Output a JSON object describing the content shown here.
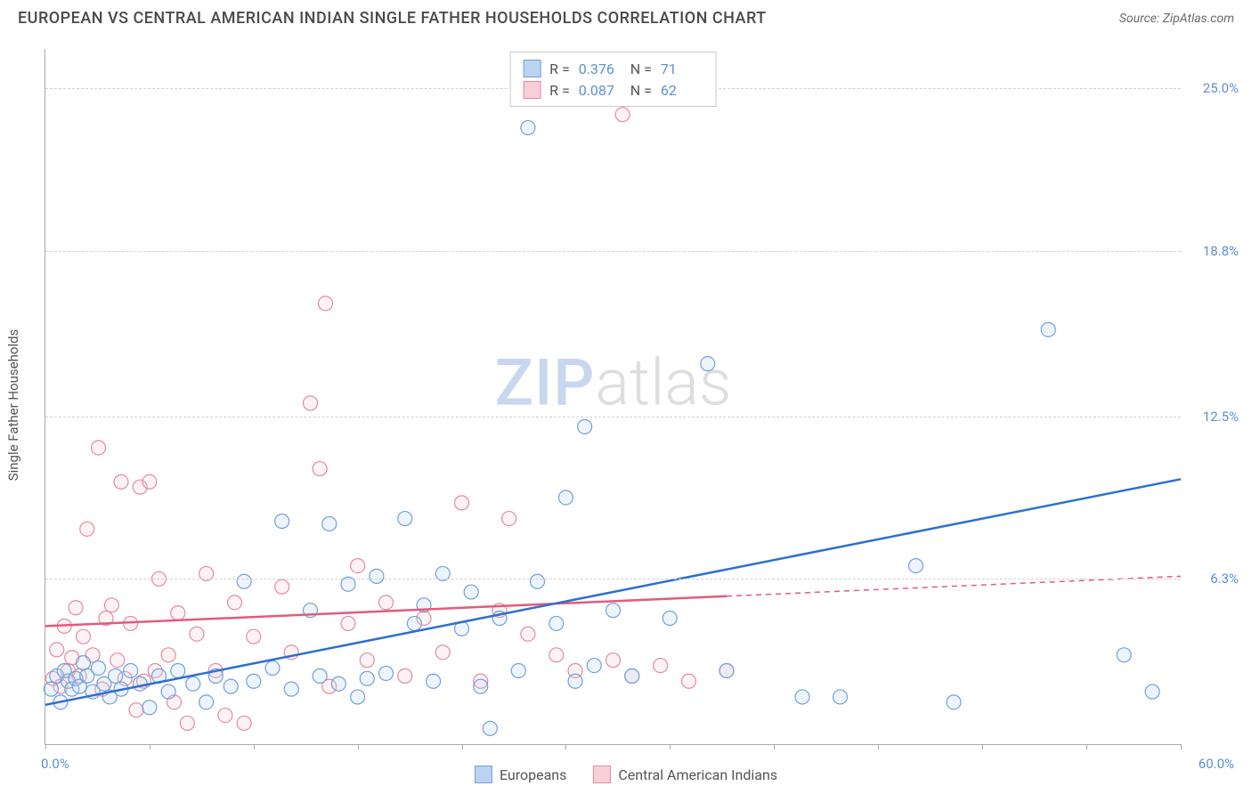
{
  "header": {
    "title": "EUROPEAN VS CENTRAL AMERICAN INDIAN SINGLE FATHER HOUSEHOLDS CORRELATION CHART",
    "source_label": "Source: ",
    "source_value": "ZipAtlas.com"
  },
  "chart": {
    "type": "scatter",
    "ylabel": "Single Father Households",
    "xlim": [
      0,
      60
    ],
    "ylim": [
      0,
      26.5
    ],
    "x_ticks_minor": [
      0,
      5.5,
      11,
      16.5,
      22,
      27.5,
      33,
      38.5,
      44,
      49.5,
      55,
      60
    ],
    "y_gridlines": [
      6.3,
      12.5,
      18.8,
      25.0
    ],
    "y_tick_labels": [
      "6.3%",
      "12.5%",
      "18.8%",
      "25.0%"
    ],
    "x_corner_left": "0.0%",
    "x_corner_right": "60.0%",
    "background_color": "#ffffff",
    "grid_color": "#d0d0d0",
    "axis_color": "#aaaaaa",
    "marker_radius": 8,
    "marker_stroke_width": 1.2,
    "marker_fill_opacity": 0.25,
    "trend_line_width": 2.5,
    "trend_dash_pattern": "6,5",
    "watermark": {
      "zip": "ZIP",
      "atlas": "atlas",
      "zip_color": "#c8d7ef",
      "atlas_color": "#dedede",
      "fontsize": 72
    }
  },
  "legend_top": {
    "rows": [
      {
        "swatch_fill": "#bcd3ef",
        "swatch_stroke": "#6fa0de",
        "r_label": "R  =",
        "r_value": "0.376",
        "n_label": "N  =",
        "n_value": "71"
      },
      {
        "swatch_fill": "#f6cfd7",
        "swatch_stroke": "#e48aa0",
        "r_label": "R  =",
        "r_value": "0.087",
        "n_label": "N  =",
        "n_value": "62"
      }
    ]
  },
  "legend_bottom": {
    "items": [
      {
        "swatch_fill": "#bcd3ef",
        "swatch_stroke": "#6fa0de",
        "label": "Europeans"
      },
      {
        "swatch_fill": "#f6cfd7",
        "swatch_stroke": "#e48aa0",
        "label": "Central American Indians"
      }
    ]
  },
  "series": {
    "europeans": {
      "color_stroke": "#6fa0de",
      "color_fill": "#bcd3ef",
      "trend_color": "#2f6fd0",
      "trend": {
        "x1": 0,
        "y1": 1.5,
        "x2": 60,
        "y2": 10.1,
        "solid_until_x": 60
      },
      "points": [
        [
          0.3,
          2.1
        ],
        [
          0.6,
          2.6
        ],
        [
          0.8,
          1.6
        ],
        [
          1.0,
          2.8
        ],
        [
          1.2,
          2.4
        ],
        [
          1.4,
          2.1
        ],
        [
          1.6,
          2.5
        ],
        [
          1.8,
          2.2
        ],
        [
          2.0,
          3.1
        ],
        [
          2.2,
          2.6
        ],
        [
          2.5,
          2.0
        ],
        [
          2.8,
          2.9
        ],
        [
          3.1,
          2.3
        ],
        [
          3.4,
          1.8
        ],
        [
          3.7,
          2.6
        ],
        [
          4.0,
          2.1
        ],
        [
          4.5,
          2.8
        ],
        [
          5.0,
          2.3
        ],
        [
          5.5,
          1.4
        ],
        [
          6.0,
          2.6
        ],
        [
          6.5,
          2.0
        ],
        [
          7.0,
          2.8
        ],
        [
          7.8,
          2.3
        ],
        [
          8.5,
          1.6
        ],
        [
          9.0,
          2.6
        ],
        [
          9.8,
          2.2
        ],
        [
          10.5,
          6.2
        ],
        [
          11.0,
          2.4
        ],
        [
          12.0,
          2.9
        ],
        [
          12.5,
          8.5
        ],
        [
          13.0,
          2.1
        ],
        [
          14.0,
          5.1
        ],
        [
          14.5,
          2.6
        ],
        [
          15.0,
          8.4
        ],
        [
          15.5,
          2.3
        ],
        [
          16.0,
          6.1
        ],
        [
          16.5,
          1.8
        ],
        [
          17.0,
          2.5
        ],
        [
          17.5,
          6.4
        ],
        [
          18.0,
          2.7
        ],
        [
          19.0,
          8.6
        ],
        [
          19.5,
          4.6
        ],
        [
          20.0,
          5.3
        ],
        [
          20.5,
          2.4
        ],
        [
          21.0,
          6.5
        ],
        [
          22.0,
          4.4
        ],
        [
          22.5,
          5.8
        ],
        [
          23.0,
          2.2
        ],
        [
          23.5,
          0.6
        ],
        [
          24.0,
          4.8
        ],
        [
          25.0,
          2.8
        ],
        [
          25.5,
          23.5
        ],
        [
          26.0,
          6.2
        ],
        [
          27.0,
          4.6
        ],
        [
          27.5,
          9.4
        ],
        [
          28.0,
          2.4
        ],
        [
          28.5,
          12.1
        ],
        [
          29.0,
          3.0
        ],
        [
          30.0,
          5.1
        ],
        [
          31.0,
          2.6
        ],
        [
          33.0,
          4.8
        ],
        [
          35.0,
          14.5
        ],
        [
          36.0,
          2.8
        ],
        [
          40.0,
          1.8
        ],
        [
          42.0,
          1.8
        ],
        [
          46.0,
          6.8
        ],
        [
          48.0,
          1.6
        ],
        [
          53.0,
          15.8
        ],
        [
          57.0,
          3.4
        ],
        [
          58.5,
          2.0
        ],
        [
          29.5,
          25.0
        ]
      ]
    },
    "cai": {
      "color_stroke": "#e48aa0",
      "color_fill": "#f6cfd7",
      "trend_color": "#e45a7d",
      "trend": {
        "x1": 0,
        "y1": 4.5,
        "x2": 60,
        "y2": 6.4,
        "solid_until_x": 36
      },
      "points": [
        [
          0.4,
          2.5
        ],
        [
          0.6,
          3.6
        ],
        [
          0.8,
          2.2
        ],
        [
          1.0,
          4.5
        ],
        [
          1.2,
          2.8
        ],
        [
          1.4,
          3.3
        ],
        [
          1.6,
          5.2
        ],
        [
          1.8,
          2.6
        ],
        [
          2.0,
          4.1
        ],
        [
          2.2,
          8.2
        ],
        [
          2.5,
          3.4
        ],
        [
          2.8,
          11.3
        ],
        [
          3.0,
          2.1
        ],
        [
          3.2,
          4.8
        ],
        [
          3.5,
          5.3
        ],
        [
          3.8,
          3.2
        ],
        [
          4.0,
          10.0
        ],
        [
          4.2,
          2.5
        ],
        [
          4.5,
          4.6
        ],
        [
          4.8,
          1.3
        ],
        [
          5.0,
          9.8
        ],
        [
          5.2,
          2.4
        ],
        [
          5.5,
          10.0
        ],
        [
          5.8,
          2.8
        ],
        [
          6.0,
          6.3
        ],
        [
          6.5,
          3.4
        ],
        [
          6.8,
          1.6
        ],
        [
          7.0,
          5.0
        ],
        [
          7.5,
          0.8
        ],
        [
          8.0,
          4.2
        ],
        [
          8.5,
          6.5
        ],
        [
          9.0,
          2.8
        ],
        [
          9.5,
          1.1
        ],
        [
          10.0,
          5.4
        ],
        [
          10.5,
          0.8
        ],
        [
          11.0,
          4.1
        ],
        [
          12.5,
          6.0
        ],
        [
          13.0,
          3.5
        ],
        [
          14.0,
          13.0
        ],
        [
          14.5,
          10.5
        ],
        [
          14.8,
          16.8
        ],
        [
          15.0,
          2.2
        ],
        [
          16.0,
          4.6
        ],
        [
          16.5,
          6.8
        ],
        [
          17.0,
          3.2
        ],
        [
          18.0,
          5.4
        ],
        [
          19.0,
          2.6
        ],
        [
          20.0,
          4.8
        ],
        [
          21.0,
          3.5
        ],
        [
          22.0,
          9.2
        ],
        [
          23.0,
          2.4
        ],
        [
          24.0,
          5.1
        ],
        [
          24.5,
          8.6
        ],
        [
          25.5,
          4.2
        ],
        [
          27.0,
          3.4
        ],
        [
          28.0,
          2.8
        ],
        [
          30.0,
          3.2
        ],
        [
          31.0,
          2.6
        ],
        [
          32.5,
          3.0
        ],
        [
          34.0,
          2.4
        ],
        [
          36.0,
          2.8
        ],
        [
          30.5,
          24.0
        ]
      ]
    }
  }
}
